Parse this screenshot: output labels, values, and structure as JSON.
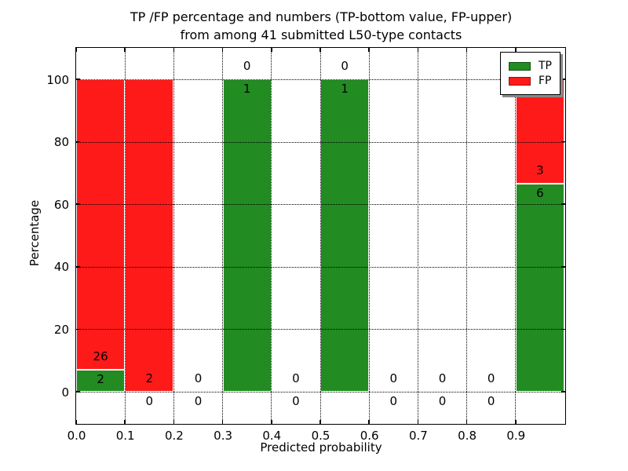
{
  "figure": {
    "title_line1": "TP /FP percentage and numbers (TP-bottom value, FP-upper)",
    "title_line2": "from among 41 submitted L50-type contacts",
    "background": "#ffffff"
  },
  "chart_data": {
    "type": "bar",
    "stacked": true,
    "title": "TP /FP percentage and numbers (TP-bottom value, FP-upper)\nfrom among 41 submitted L50-type contacts",
    "xlabel": "Predicted probability",
    "ylabel": "Percentage",
    "xlim": [
      0.0,
      1.0
    ],
    "ylim": [
      -10,
      110
    ],
    "x_tick_labels": [
      "0.0",
      "0.1",
      "0.2",
      "0.3",
      "0.4",
      "0.5",
      "0.6",
      "0.7",
      "0.8",
      "0.9"
    ],
    "y_ticks": [
      0,
      20,
      40,
      60,
      80,
      100
    ],
    "grid": {
      "visible": true,
      "style": "dotted",
      "axes": "both"
    },
    "total_contacts": 41,
    "bin_width": 0.1,
    "categories": [
      "0.0-0.1",
      "0.1-0.2",
      "0.2-0.3",
      "0.3-0.4",
      "0.4-0.5",
      "0.5-0.6",
      "0.6-0.7",
      "0.7-0.8",
      "0.8-0.9",
      "0.9-1.0"
    ],
    "series": [
      {
        "name": "TP",
        "color": "#228b22",
        "counts": [
          2,
          0,
          0,
          1,
          0,
          1,
          0,
          0,
          0,
          6
        ],
        "percent": [
          7.14,
          0,
          0,
          100,
          0,
          100,
          0,
          0,
          0,
          66.67
        ]
      },
      {
        "name": "FP",
        "color": "#ff1a1a",
        "counts": [
          26,
          2,
          0,
          0,
          0,
          0,
          0,
          0,
          0,
          3
        ],
        "percent": [
          92.86,
          100,
          0,
          0,
          0,
          0,
          0,
          0,
          0,
          33.33
        ]
      }
    ],
    "annotations": {
      "fp_upper_labels": [
        "26",
        "2",
        "0",
        "0",
        "0",
        "0",
        "0",
        "0",
        "0",
        "3"
      ],
      "tp_bottom_labels": [
        "2",
        "0",
        "0",
        "1",
        "0",
        "1",
        "0",
        "0",
        "0",
        "6"
      ]
    },
    "legend": {
      "position": "upper right",
      "entries": [
        {
          "label": "TP",
          "color": "#228b22"
        },
        {
          "label": "FP",
          "color": "#ff1a1a"
        }
      ]
    }
  }
}
